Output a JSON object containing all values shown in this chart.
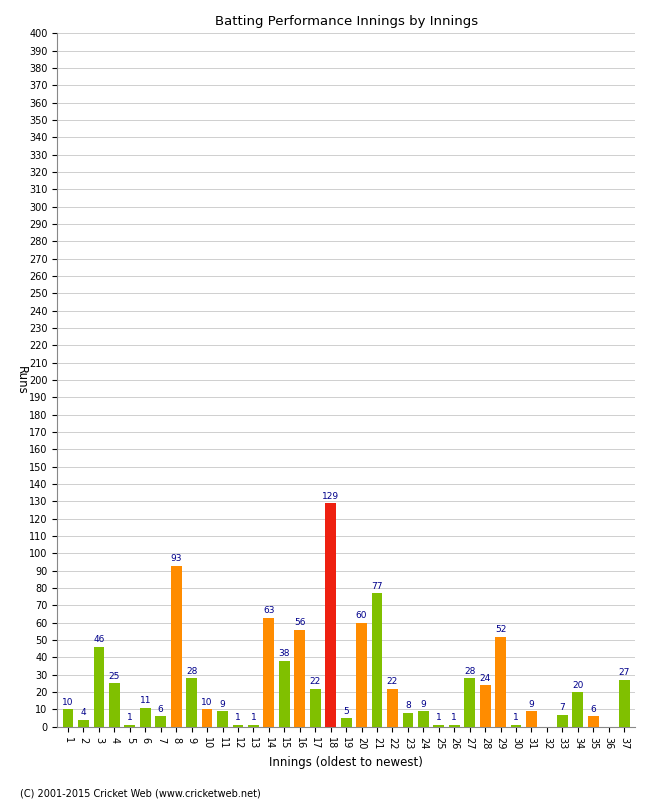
{
  "innings": [
    1,
    2,
    3,
    4,
    5,
    6,
    7,
    8,
    9,
    10,
    11,
    12,
    13,
    14,
    15,
    16,
    17,
    18,
    19,
    20,
    21,
    22,
    23,
    24,
    25,
    26,
    27,
    28,
    29,
    30,
    31,
    32,
    33,
    34,
    35,
    36,
    37
  ],
  "values": [
    10,
    4,
    46,
    25,
    1,
    11,
    6,
    93,
    28,
    10,
    9,
    1,
    1,
    63,
    38,
    56,
    22,
    129,
    5,
    60,
    77,
    22,
    8,
    9,
    1,
    1,
    28,
    24,
    52,
    1,
    9,
    0,
    7,
    20,
    6,
    0,
    27
  ],
  "colors": [
    "green",
    "green",
    "green",
    "green",
    "green",
    "green",
    "green",
    "orange",
    "green",
    "orange",
    "green",
    "green",
    "green",
    "orange",
    "green",
    "orange",
    "green",
    "red",
    "green",
    "orange",
    "green",
    "orange",
    "green",
    "green",
    "green",
    "green",
    "green",
    "orange",
    "orange",
    "green",
    "orange",
    "green",
    "green",
    "green",
    "orange",
    "green",
    "green"
  ],
  "labels": [
    "1",
    "2",
    "3",
    "4",
    "5",
    "6",
    "7",
    "8",
    "9",
    "10",
    "11",
    "12",
    "13",
    "14",
    "15",
    "16",
    "17",
    "18",
    "19",
    "20",
    "21",
    "22",
    "23",
    "24",
    "25",
    "26",
    "27",
    "28",
    "29",
    "30",
    "31",
    "32",
    "33",
    "34",
    "35",
    "36",
    "37"
  ],
  "title": "Batting Performance Innings by Innings",
  "ylabel": "Runs",
  "xlabel": "Innings (oldest to newest)",
  "footer": "(C) 2001-2015 Cricket Web (www.cricketweb.net)",
  "orange_color": "#FF8C00",
  "green_color": "#80C000",
  "red_color": "#EE2010",
  "label_color": "#00008B",
  "bg_color": "#FFFFFF",
  "grid_color": "#C8C8C8",
  "ylim_max": 400,
  "bar_width": 0.7,
  "figwidth": 6.5,
  "figheight": 8.0
}
